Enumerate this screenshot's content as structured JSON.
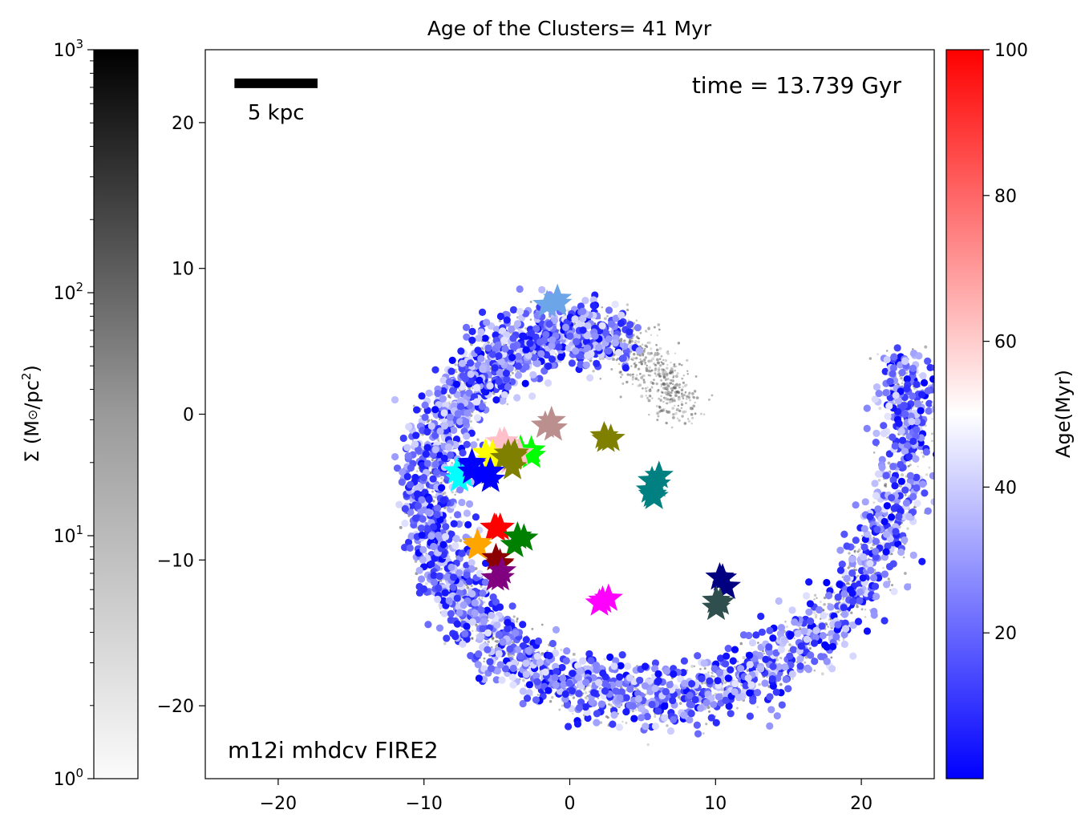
{
  "chart_data": {
    "type": "scatter",
    "title": "Age of the Clusters= 41 Myr",
    "xlim": [
      -25,
      25
    ],
    "ylim": [
      -25,
      25
    ],
    "x_ticks": [
      -20,
      -10,
      0,
      10,
      20
    ],
    "y_ticks": [
      20,
      10,
      0,
      -10,
      -20
    ],
    "x_tick_labels": [
      "−20",
      "−10",
      "0",
      "10",
      "20"
    ],
    "y_tick_labels": [
      "20",
      "10",
      "0",
      "−10",
      "−20"
    ],
    "xlabel": "",
    "ylabel": "",
    "grid": false,
    "annotations": {
      "time": "time = 13.739 Gyr",
      "simulation": "m12i mhdcv FIRE2",
      "scale_bar_label": "5 kpc",
      "scale_bar_x": [
        -23,
        -17.3
      ],
      "scale_bar_y": 22.7
    },
    "background_density": {
      "label": "Σ (M⊙/pc²)",
      "label_base": "Σ (M",
      "label_sun": "⊙",
      "label_unit": "/pc",
      "label_exp": "2",
      "label_close": ")",
      "scale": "log",
      "range": [
        1,
        1000
      ],
      "colormap": "gray_r",
      "ticks": [
        {
          "value": 1000,
          "base": "10",
          "exp": "3"
        },
        {
          "value": 100,
          "base": "10",
          "exp": "2"
        },
        {
          "value": 10,
          "base": "10",
          "exp": "1"
        },
        {
          "value": 1,
          "base": "10",
          "exp": "0"
        }
      ]
    },
    "age_colorbar": {
      "label": "Age(Myr)",
      "range": [
        0,
        100
      ],
      "colormap": "bwr",
      "colors": [
        "#0000ff",
        "#ffffff",
        "#ff0000"
      ],
      "ticks": [
        100,
        80,
        60,
        40,
        20
      ],
      "tick_labels": [
        "100",
        "80",
        "60",
        "40",
        "20"
      ]
    },
    "cluster_stars": [
      {
        "x": -1.2,
        "y": 7.6,
        "color": "#6ca6e8"
      },
      {
        "x": -1.5,
        "y": -0.8,
        "color": "#bc8f8f"
      },
      {
        "x": 2.5,
        "y": -1.8,
        "color": "#808000"
      },
      {
        "x": -3.0,
        "y": -2.7,
        "color": "#00ff00"
      },
      {
        "x": -4.5,
        "y": -1.9,
        "color": "#ffc0cb"
      },
      {
        "x": -3.8,
        "y": -2.9,
        "color": "#ffc0cb"
      },
      {
        "x": -5.5,
        "y": -2.8,
        "color": "#ffff00"
      },
      {
        "x": -4.2,
        "y": -3.3,
        "color": "#808000"
      },
      {
        "x": -4.0,
        "y": -2.6,
        "color": "#808000"
      },
      {
        "x": -7.5,
        "y": -4.2,
        "color": "#00ffff"
      },
      {
        "x": -6.7,
        "y": -3.6,
        "color": "#0000ff"
      },
      {
        "x": -5.8,
        "y": -4.3,
        "color": "#0000ff"
      },
      {
        "x": 5.8,
        "y": -4.6,
        "color": "#008080"
      },
      {
        "x": 5.9,
        "y": -5.6,
        "color": "#008080"
      },
      {
        "x": -5.0,
        "y": -8.0,
        "color": "#ff0000"
      },
      {
        "x": -6.3,
        "y": -9.1,
        "color": "#ffa500"
      },
      {
        "x": -3.5,
        "y": -8.7,
        "color": "#008000"
      },
      {
        "x": -4.7,
        "y": -10.1,
        "color": "#8b0000"
      },
      {
        "x": -4.8,
        "y": -11.0,
        "color": "#800080"
      },
      {
        "x": 2.3,
        "y": -12.8,
        "color": "#ff00ff"
      },
      {
        "x": 10.6,
        "y": -11.5,
        "color": "#000080"
      },
      {
        "x": 10.3,
        "y": -13.1,
        "color": "#2f4f4f"
      }
    ]
  }
}
